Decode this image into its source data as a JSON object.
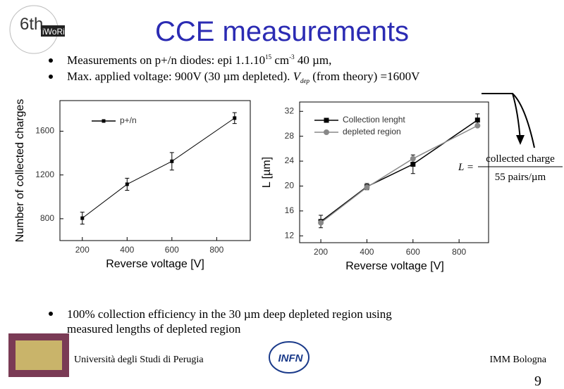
{
  "title": "CCE measurements",
  "bullets": [
    [
      "Measurements on p+/n diodes: epi 1.1.10",
      "15",
      " cm",
      "-3",
      " 40 µm,"
    ],
    [
      "Max. applied voltage: 900V (30 µm depleted). ",
      "V",
      "dep",
      " (from theory) =1600V"
    ],
    [
      "100% collection efficiency in the 30 µm deep depleted region using",
      "measured lengths of depleted region"
    ]
  ],
  "formula": {
    "lhs": "L =",
    "numerator": "collected charge",
    "denominator": "55 pairs/µm"
  },
  "logo": {
    "line1": "6th",
    "line2": "iWoRiD"
  },
  "footer": {
    "left": "Università degli Studi di Perugia",
    "center": "INFN",
    "right": "IMM Bologna",
    "page": "9"
  },
  "chart_data": [
    {
      "type": "line",
      "xlabel": "Reverse voltage [V]",
      "ylabel": "Number of collected charges",
      "x": [
        200,
        400,
        600,
        880
      ],
      "xlim": [
        100,
        950
      ],
      "ylim": [
        600,
        1880
      ],
      "xticks": [
        200,
        400,
        600,
        800
      ],
      "yticks": [
        800,
        1200,
        1600
      ],
      "series": [
        {
          "name": "p+/n",
          "color": "#000000",
          "marker": "square",
          "values": [
            805,
            1115,
            1325,
            1720
          ],
          "errors": [
            55,
            55,
            80,
            50
          ]
        }
      ]
    },
    {
      "type": "line",
      "xlabel": "Reverse voltage [V]",
      "ylabel": "L [µm]",
      "x": [
        200,
        400,
        600,
        880
      ],
      "xlim": [
        108,
        928
      ],
      "ylim": [
        10.9,
        33.5
      ],
      "xticks": [
        200,
        400,
        600,
        800
      ],
      "yticks": [
        12,
        16,
        20,
        24,
        28,
        32
      ],
      "series": [
        {
          "name": "Collection lenght",
          "color": "#000000",
          "marker": "square",
          "values": [
            14.3,
            19.9,
            23.5,
            30.6
          ],
          "errors": [
            1.0,
            0.5,
            1.5,
            1.0
          ]
        },
        {
          "name": "depleted region",
          "color": "#888888",
          "marker": "circle",
          "values": [
            14.1,
            19.8,
            24.4,
            29.7
          ]
        }
      ]
    }
  ]
}
